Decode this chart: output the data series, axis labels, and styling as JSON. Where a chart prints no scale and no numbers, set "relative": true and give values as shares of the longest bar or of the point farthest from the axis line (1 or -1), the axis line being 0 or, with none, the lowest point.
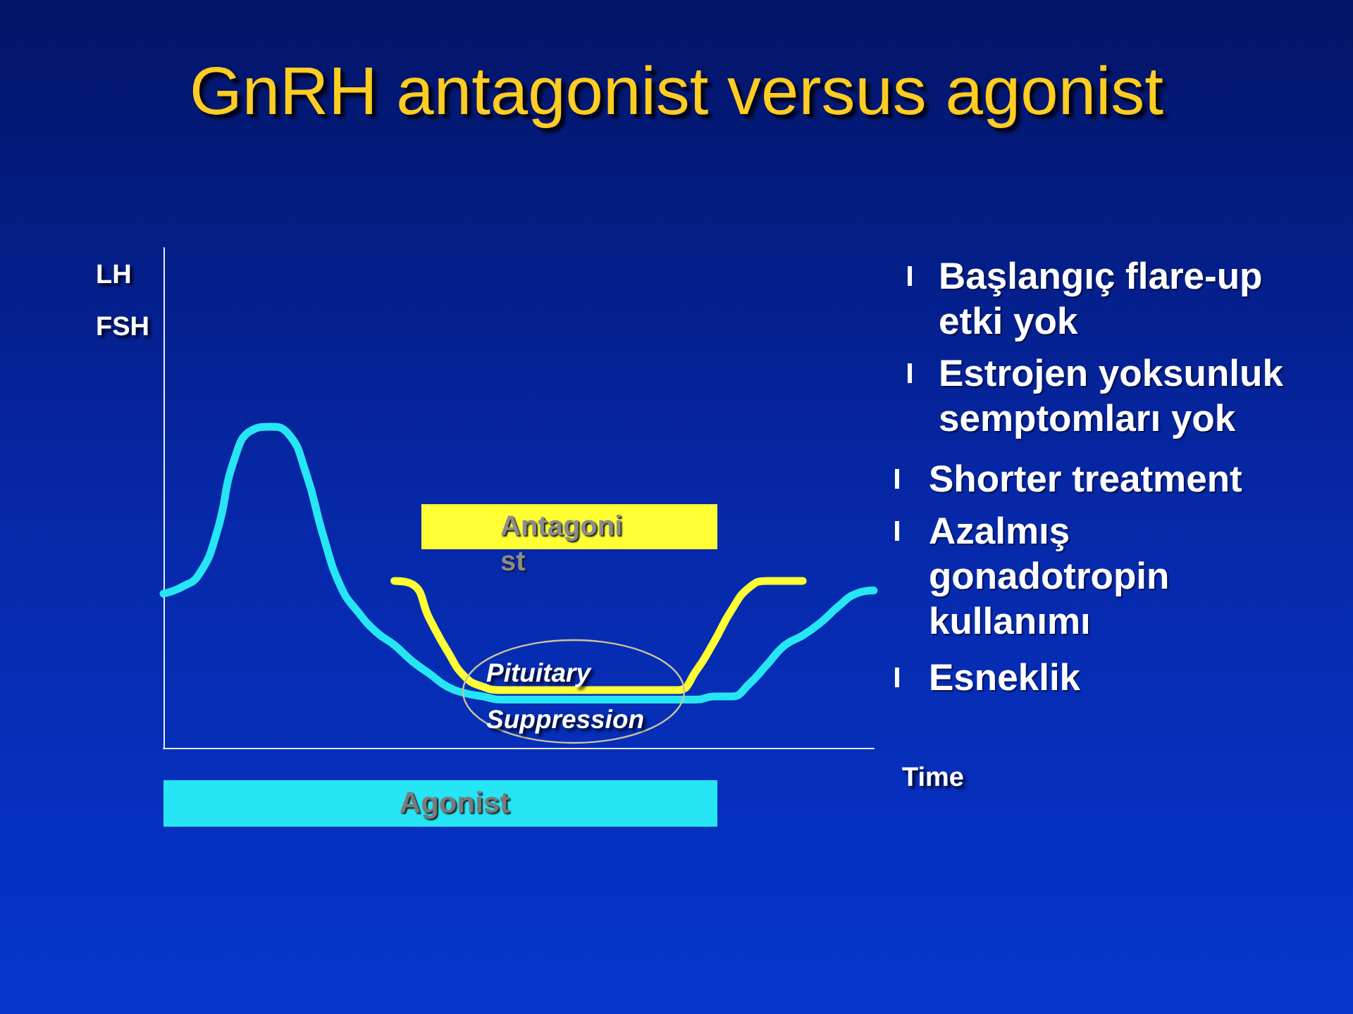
{
  "chart_data": {
    "type": "line",
    "title": "GnRH antagonist versus agonist",
    "xlabel": "Time",
    "ylabel": "LH\nFSH",
    "relative": true,
    "categories": [
      null,
      null,
      null,
      null,
      null,
      null,
      null,
      null,
      null,
      null,
      null,
      null,
      null,
      null,
      null,
      null,
      null,
      null,
      null,
      null,
      null,
      null,
      null,
      null,
      null,
      null,
      null,
      null,
      null,
      null,
      null,
      null,
      null,
      null,
      null,
      null,
      null,
      null,
      null,
      null,
      null
    ],
    "series": [
      {
        "color": "#26e6f5",
        "values": [
          0.48,
          0.5,
          0.54,
          0.67,
          0.9,
          0.99,
          1,
          0.98,
          0.86,
          0.66,
          0.5,
          0.42,
          0.36,
          0.32,
          0.27,
          0.23,
          0.19,
          0.17,
          0.16,
          0.15,
          0.15,
          0.15,
          0.15,
          0.15,
          0.15,
          0.15,
          0.15,
          0.15,
          0.15,
          0.15,
          0.15,
          0.16,
          0.16,
          0.2,
          0.26,
          0.32,
          0.35,
          0.39,
          0.44,
          0.48,
          0.49
        ]
      },
      {
        "color": "#ffff33",
        "values": [
          null,
          null,
          null,
          null,
          null,
          null,
          null,
          null,
          null,
          null,
          null,
          null,
          null,
          0.52,
          0.51,
          0.4,
          0.3,
          0.22,
          0.19,
          0.18,
          0.18,
          0.18,
          0.18,
          0.18,
          0.18,
          0.18,
          0.18,
          0.18,
          0.18,
          0.18,
          0.24,
          0.33,
          0.43,
          0.5,
          0.52,
          0.52,
          0.52,
          null,
          null,
          null,
          null
        ]
      }
    ],
    "annotations": [
      "Antagoni\nst",
      "Agonist",
      "Pituitary\nSuppression",
      "Başlangıç flare-up etki yok",
      "Estrojen yoksunluk semptomları yok",
      "Shorter treatment",
      "Azalmış gonadotropin kullanımı",
      "Esneklik"
    ],
    "grid": false,
    "marker": "none",
    "line_style": "solid"
  }
}
